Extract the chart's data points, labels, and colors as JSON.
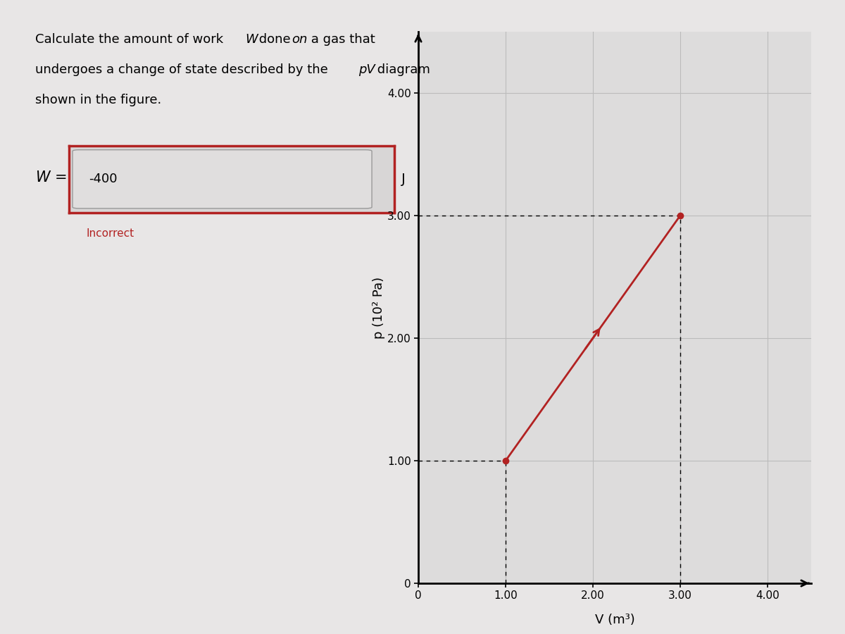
{
  "background_color": "#e8e6e6",
  "fig_width": 12,
  "fig_height": 9,
  "w_label": "W =",
  "answer_value": "-400",
  "answer_unit": "J",
  "incorrect_text": "Incorrect",
  "incorrect_color": "#b22222",
  "plot_line_x": [
    1.0,
    3.0
  ],
  "plot_line_y": [
    1.0,
    3.0
  ],
  "line_color": "#b22222",
  "dashed_x1": 1.0,
  "dashed_y1": 1.0,
  "dashed_x2": 3.0,
  "dashed_y2": 3.0,
  "marker_color": "#b22222",
  "marker_size": 7,
  "xlabel": "V (m³)",
  "ylabel": "p (10² Pa)",
  "xlim": [
    0,
    4.5
  ],
  "ylim": [
    0,
    4.5
  ],
  "xticks": [
    0,
    1.0,
    2.0,
    3.0,
    4.0
  ],
  "yticks": [
    0,
    1.0,
    2.0,
    3.0,
    4.0
  ],
  "grid_color": "#bbbbbb",
  "plot_bg_color": "#dddcdc",
  "arrow_color": "#b22222",
  "text_fontsize": 13,
  "box_bg": "#d8d6d6",
  "inner_box_bg": "#e0dede",
  "box_edge_color": "#b22222"
}
